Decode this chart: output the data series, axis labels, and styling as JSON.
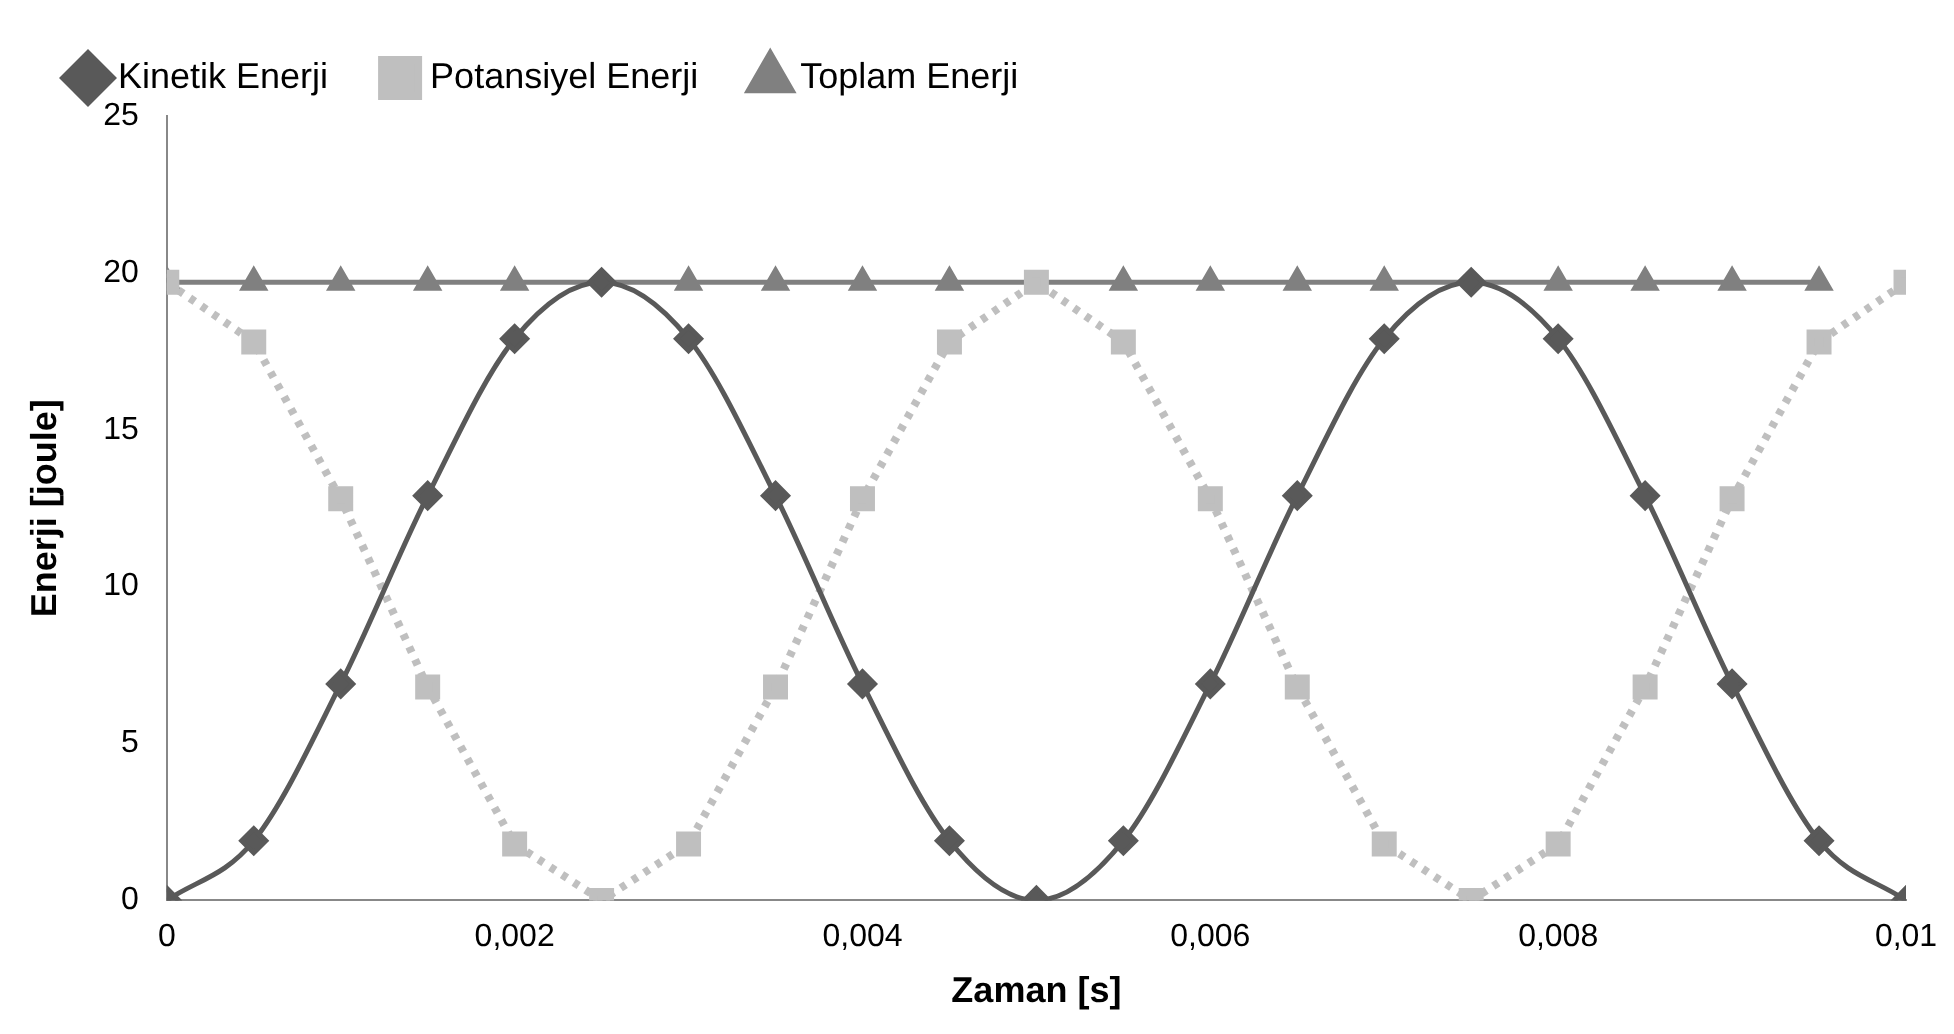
{
  "chart_data": {
    "type": "line",
    "xlabel": "Zaman [s]",
    "ylabel": "Enerji [joule]",
    "x": [
      0,
      0.0005,
      0.001,
      0.0015,
      0.002,
      0.0025,
      0.003,
      0.0035,
      0.004,
      0.0045,
      0.005,
      0.0055,
      0.006,
      0.0065,
      0.007,
      0.0075,
      0.008,
      0.0085,
      0.009,
      0.0095,
      0.01
    ],
    "series": [
      {
        "name": "Kinetik Enerji",
        "color": "#595959",
        "marker": "diamond",
        "line_style": "solid",
        "values": [
          0,
          1.9,
          6.9,
          12.9,
          17.9,
          19.7,
          17.9,
          12.9,
          6.9,
          1.9,
          0,
          1.9,
          6.9,
          12.9,
          17.9,
          19.7,
          17.9,
          12.9,
          6.9,
          1.9,
          0
        ]
      },
      {
        "name": "Potansiyel Enerji",
        "color": "#bfbfbf",
        "marker": "square",
        "line_style": "dotted",
        "values": [
          19.7,
          17.8,
          12.8,
          6.8,
          1.8,
          0,
          1.8,
          6.8,
          12.8,
          17.8,
          19.7,
          17.8,
          12.8,
          6.8,
          1.8,
          0,
          1.8,
          6.8,
          12.8,
          17.8,
          19.7
        ]
      },
      {
        "name": "Toplam Enerji",
        "color": "#808080",
        "marker": "triangle",
        "line_style": "solid",
        "values": [
          19.7,
          19.7,
          19.7,
          19.7,
          19.7,
          null,
          19.7,
          19.7,
          19.7,
          19.7,
          null,
          19.7,
          19.7,
          19.7,
          19.7,
          null,
          19.7,
          19.7,
          19.7,
          19.7,
          null
        ]
      }
    ],
    "xlim": [
      0,
      0.01
    ],
    "xticks": [
      0,
      {
        "value": 0.002,
        "label": "0,002"
      },
      {
        "value": 0.004,
        "label": "0,004"
      },
      {
        "value": 0.006,
        "label": "0,006"
      },
      {
        "value": 0.008,
        "label": "0,008"
      },
      {
        "value": 0.01,
        "label": "0,01"
      }
    ],
    "ylim": [
      0,
      25
    ],
    "yticks": [
      0,
      5,
      10,
      15,
      20,
      25
    ],
    "grid": false,
    "legend": "top"
  }
}
